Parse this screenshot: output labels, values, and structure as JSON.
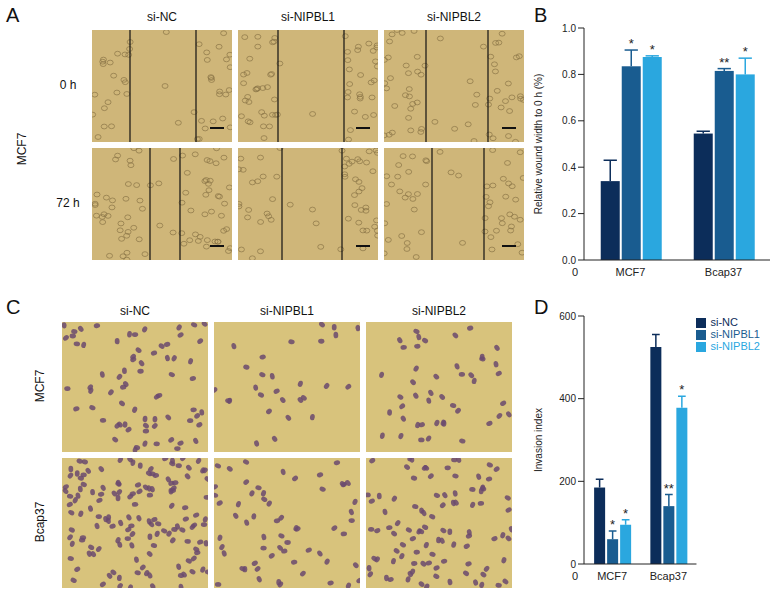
{
  "figure": {
    "panel_labels": [
      "A",
      "B",
      "C",
      "D"
    ],
    "wound_healing": {
      "cell_line": "MCF7",
      "columns": [
        "si-NC",
        "si-NIPBL1",
        "si-NIPBL2"
      ],
      "rows": [
        "0 h",
        "72 h"
      ]
    },
    "transwell": {
      "columns": [
        "si-NC",
        "si-NIPBL1",
        "si-NIPBL2"
      ],
      "rows": [
        "MCF7",
        "Bcap37"
      ]
    }
  },
  "chart_data": [
    {
      "type": "bar",
      "y_label": "Relative wound width to 0 h (%)",
      "x_origin_label": "0",
      "categories": [
        "MCF7",
        "Bcap37"
      ],
      "series": [
        {
          "name": "si-NC",
          "color": "#0c2d5a",
          "values": [
            0.34,
            0.545
          ],
          "errors": [
            0.09,
            0.01
          ]
        },
        {
          "name": "si-NIPBL1",
          "color": "#195c90",
          "values": [
            0.835,
            0.815
          ],
          "errors": [
            0.07,
            0.01
          ],
          "significance": [
            "*",
            "**"
          ]
        },
        {
          "name": "si-NIPBL2",
          "color": "#2aa7df",
          "values": [
            0.875,
            0.8
          ],
          "errors": [
            0.005,
            0.07
          ],
          "significance": [
            "*",
            "*"
          ]
        }
      ],
      "ylim": [
        0,
        1
      ],
      "yticks": [
        {
          "value": 0,
          "label": "0.0"
        },
        0.2,
        0.4,
        0.6,
        0.8,
        {
          "value": 1,
          "label": "1.0"
        }
      ]
    },
    {
      "type": "bar",
      "y_label": "Invasion index",
      "x_origin_label": "0",
      "legend": "top-right",
      "categories": [
        "MCF7",
        "Bcap37"
      ],
      "series": [
        {
          "name": "si-NC",
          "color": "#0c2d5a",
          "values": [
            185,
            525
          ],
          "errors": [
            20,
            30
          ]
        },
        {
          "name": "si-NIPBL1",
          "color": "#195c90",
          "values": [
            60,
            140
          ],
          "errors": [
            20,
            28
          ],
          "significance": [
            "*",
            "**"
          ]
        },
        {
          "name": "si-NIPBL2",
          "color": "#2aa7df",
          "values": [
            95,
            378
          ],
          "errors": [
            12,
            28
          ],
          "significance": [
            "*",
            "*"
          ]
        }
      ],
      "ylim": [
        0,
        600
      ],
      "yticks": [
        0,
        200,
        400,
        600
      ]
    }
  ]
}
